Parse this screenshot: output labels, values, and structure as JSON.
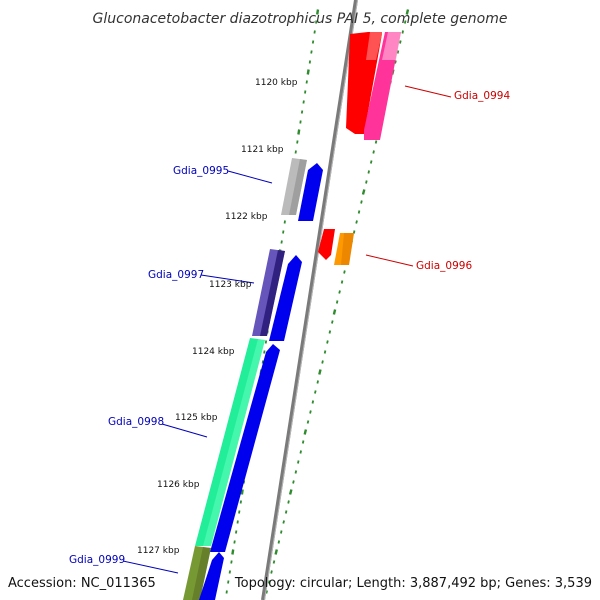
{
  "title": "Gluconacetobacter diazotrophicus PAI 5, complete genome",
  "footer": {
    "accession": "Accession: NC_011365",
    "stats": "Topology: circular; Length: 3,887,492 bp; Genes: 3,539"
  },
  "kbp_ticks": [
    {
      "label": "1120 kbp",
      "kbp": 1120
    },
    {
      "label": "1121 kbp",
      "kbp": 1121
    },
    {
      "label": "1122 kbp",
      "kbp": 1122
    },
    {
      "label": "1123 kbp",
      "kbp": 1123
    },
    {
      "label": "1124 kbp",
      "kbp": 1124
    },
    {
      "label": "1125 kbp",
      "kbp": 1125
    },
    {
      "label": "1126 kbp",
      "kbp": 1126
    },
    {
      "label": "1127 kbp",
      "kbp": 1127
    }
  ],
  "gene_labels": [
    {
      "name": "Gdia_0994",
      "strand": "forward",
      "color": "#cc0000"
    },
    {
      "name": "Gdia_0995",
      "strand": "reverse",
      "color": "#0000bb"
    },
    {
      "name": "Gdia_0996",
      "strand": "forward",
      "color": "#cc0000"
    },
    {
      "name": "Gdia_0997",
      "strand": "reverse",
      "color": "#0000bb"
    },
    {
      "name": "Gdia_0998",
      "strand": "reverse",
      "color": "#0000bb"
    },
    {
      "name": "Gdia_0999",
      "strand": "reverse",
      "color": "#0000bb"
    }
  ],
  "colors": {
    "backbone": "#808080",
    "tick": "#2e8b2e",
    "cds_blue": "#0000ee",
    "gene_red": "#ff0000",
    "gene_pink": "#ff3399",
    "gene_orange": "#ff9900",
    "gene_gray": "#bbbbbb",
    "gene_purple": "#6655bb",
    "gene_mint": "#22ee99",
    "gene_olive": "#779933"
  }
}
